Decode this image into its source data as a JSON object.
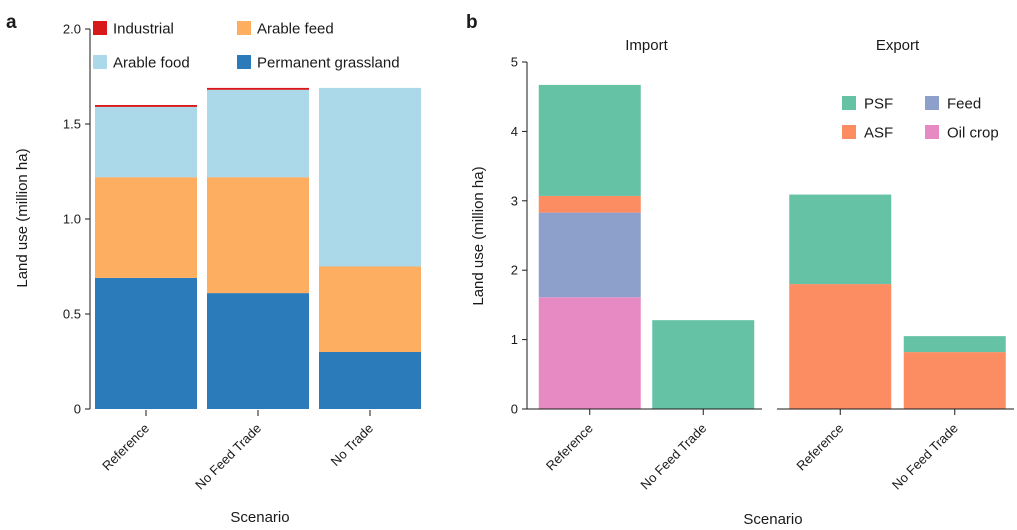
{
  "panels": {
    "a": {
      "letter": "a"
    },
    "b": {
      "letter": "b"
    }
  },
  "chart_data": [
    {
      "type": "bar",
      "stacked": true,
      "panel": "a",
      "title": "",
      "xlabel": "Scenario",
      "ylabel": "Land use (million ha)",
      "ylim": [
        0,
        2.0
      ],
      "yticks": [
        "0",
        "0.5",
        "1.0",
        "1.5",
        "2.0"
      ],
      "categories": [
        "Reference",
        "No Feed Trade",
        "No Trade"
      ],
      "series": [
        {
          "name": "Permanent grassland",
          "color": "#2b7bba",
          "values": [
            0.69,
            0.61,
            0.3
          ]
        },
        {
          "name": "Arable feed",
          "color": "#fdae61",
          "values": [
            0.53,
            0.61,
            0.45
          ]
        },
        {
          "name": "Arable food",
          "color": "#abd9e9",
          "values": [
            0.37,
            0.46,
            0.94
          ]
        },
        {
          "name": "Industrial",
          "color": "#d7191c",
          "values": [
            0.01,
            0.01,
            0.0
          ]
        }
      ],
      "legend": {
        "placement": "top",
        "order": [
          "Industrial",
          "Arable feed",
          "Arable food",
          "Permanent grassland"
        ]
      },
      "grid": false
    },
    {
      "type": "bar",
      "stacked": true,
      "panel": "b",
      "title": "",
      "xlabel": "Scenario",
      "ylabel": "Land use (million ha)",
      "ylim": [
        0,
        5
      ],
      "yticks": [
        "0",
        "1",
        "2",
        "3",
        "4",
        "5"
      ],
      "facets": [
        {
          "label": "Import",
          "categories": [
            "Reference",
            "No Feed Trade"
          ],
          "series": [
            {
              "name": "Oil crop",
              "values": [
                1.61,
                0.0
              ]
            },
            {
              "name": "Feed",
              "values": [
                1.22,
                0.0
              ]
            },
            {
              "name": "ASF",
              "values": [
                0.24,
                0.0
              ]
            },
            {
              "name": "PSF",
              "values": [
                1.6,
                1.28
              ]
            }
          ]
        },
        {
          "label": "Export",
          "categories": [
            "Reference",
            "No Feed Trade"
          ],
          "series": [
            {
              "name": "Oil crop",
              "values": [
                0.0,
                0.0
              ]
            },
            {
              "name": "Feed",
              "values": [
                0.0,
                0.0
              ]
            },
            {
              "name": "ASF",
              "values": [
                1.8,
                0.82
              ]
            },
            {
              "name": "PSF",
              "values": [
                1.29,
                0.23
              ]
            }
          ]
        }
      ],
      "series_colors": {
        "PSF": "#66c2a5",
        "ASF": "#fc8d62",
        "Feed": "#8da0cb",
        "Oil crop": "#e78ac3"
      },
      "legend": {
        "placement": "top-right",
        "order": [
          "PSF",
          "Feed",
          "ASF",
          "Oil crop"
        ]
      },
      "grid": false
    }
  ]
}
